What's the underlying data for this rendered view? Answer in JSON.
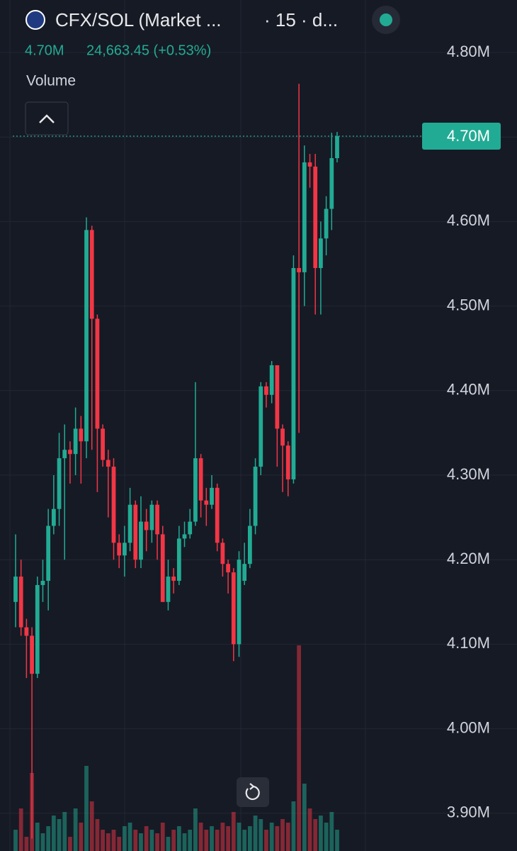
{
  "header": {
    "title": "CFX/SOL (Market ...",
    "interval": "· 15 · d...",
    "change": "24,663.45 (+0.53%)",
    "volume_label": "Volume"
  },
  "chart_data": {
    "type": "candlestick",
    "up_color": "#22ab94",
    "down_color": "#f23645",
    "last_price": {
      "value": 4701000,
      "label": "4.70M"
    },
    "ylim": [
      3850000,
      4820000
    ],
    "yticks": [
      {
        "value": 3900000,
        "label": "3.90M"
      },
      {
        "value": 4000000,
        "label": "4.00M"
      },
      {
        "value": 4100000,
        "label": "4.10M"
      },
      {
        "value": 4200000,
        "label": "4.20M"
      },
      {
        "value": 4300000,
        "label": "4.30M"
      },
      {
        "value": 4400000,
        "label": "4.40M"
      },
      {
        "value": 4500000,
        "label": "4.50M"
      },
      {
        "value": 4600000,
        "label": "4.60M"
      },
      {
        "value": 4700000,
        "label": "4.70M"
      },
      {
        "value": 4800000,
        "label": "4.80M"
      }
    ],
    "grid": true,
    "open": [
      4150000,
      4180000,
      4120000,
      4110000,
      4065000,
      4170000,
      4175000,
      4240000,
      4260000,
      4320000,
      4330000,
      4325000,
      4355000,
      4340000,
      4590000,
      4485000,
      4355000,
      4318000,
      4310000,
      4220000,
      4205000,
      4220000,
      4265000,
      4200000,
      4245000,
      4235000,
      4265000,
      4230000,
      4150000,
      4180000,
      4175000,
      4225000,
      4230000,
      4245000,
      4320000,
      4270000,
      4265000,
      4285000,
      4220000,
      4195000,
      4185000,
      4100000,
      4175000,
      4195000,
      4240000,
      4310000,
      4405000,
      4395000,
      4430000,
      4355000,
      4335000,
      4295000,
      4545000,
      4540000,
      4670000,
      4665000,
      4545000,
      4580000,
      4615000,
      4675000
    ],
    "high": [
      4230000,
      4200000,
      4130000,
      4120000,
      4180000,
      4200000,
      4260000,
      4300000,
      4350000,
      4360000,
      4340000,
      4380000,
      4370000,
      4605000,
      4595000,
      4490000,
      4360000,
      4330000,
      4320000,
      4230000,
      4240000,
      4285000,
      4270000,
      4275000,
      4260000,
      4270000,
      4270000,
      4240000,
      4200000,
      4190000,
      4240000,
      4245000,
      4260000,
      4410000,
      4325000,
      4285000,
      4300000,
      4290000,
      4225000,
      4200000,
      4190000,
      4210000,
      4220000,
      4260000,
      4320000,
      4410000,
      4410000,
      4435000,
      4430000,
      4360000,
      4340000,
      4560000,
      4763000,
      4690000,
      4680000,
      4680000,
      4600000,
      4630000,
      4705000,
      4706000
    ],
    "low": [
      4120000,
      4110000,
      4060000,
      3870000,
      4060000,
      4150000,
      4140000,
      4230000,
      4240000,
      4200000,
      4290000,
      4300000,
      4290000,
      4320000,
      4330000,
      4280000,
      4310000,
      4250000,
      4200000,
      4190000,
      4180000,
      4210000,
      4190000,
      4190000,
      4210000,
      4220000,
      4200000,
      4150000,
      4140000,
      4160000,
      4170000,
      4215000,
      4225000,
      4240000,
      4250000,
      4240000,
      4260000,
      4210000,
      4180000,
      4160000,
      4080000,
      4085000,
      4170000,
      4190000,
      4230000,
      4300000,
      4380000,
      4385000,
      4310000,
      4280000,
      4275000,
      4290000,
      4350000,
      4500000,
      4640000,
      4490000,
      4490000,
      4560000,
      4590000,
      4670000
    ],
    "close": [
      4180000,
      4120000,
      4110000,
      4065000,
      4170000,
      4175000,
      4240000,
      4260000,
      4320000,
      4330000,
      4325000,
      4355000,
      4340000,
      4590000,
      4485000,
      4355000,
      4318000,
      4310000,
      4220000,
      4205000,
      4220000,
      4265000,
      4200000,
      4245000,
      4235000,
      4265000,
      4230000,
      4150000,
      4180000,
      4175000,
      4225000,
      4230000,
      4245000,
      4320000,
      4270000,
      4265000,
      4285000,
      4220000,
      4195000,
      4185000,
      4100000,
      4200000,
      4195000,
      4240000,
      4310000,
      4405000,
      4395000,
      4430000,
      4355000,
      4335000,
      4295000,
      4545000,
      4540000,
      4670000,
      4665000,
      4545000,
      4580000,
      4615000,
      4675000,
      4701000
    ],
    "volume": [
      30,
      60,
      20,
      110,
      40,
      25,
      35,
      50,
      45,
      55,
      20,
      60,
      40,
      120,
      70,
      45,
      30,
      25,
      30,
      20,
      35,
      40,
      30,
      25,
      35,
      30,
      25,
      40,
      20,
      30,
      35,
      25,
      30,
      60,
      40,
      30,
      35,
      30,
      40,
      35,
      55,
      40,
      30,
      35,
      50,
      45,
      30,
      40,
      35,
      45,
      40,
      70,
      290,
      95,
      60,
      45,
      50,
      40,
      55,
      30
    ],
    "volume_lim": [
      0,
      300
    ]
  }
}
